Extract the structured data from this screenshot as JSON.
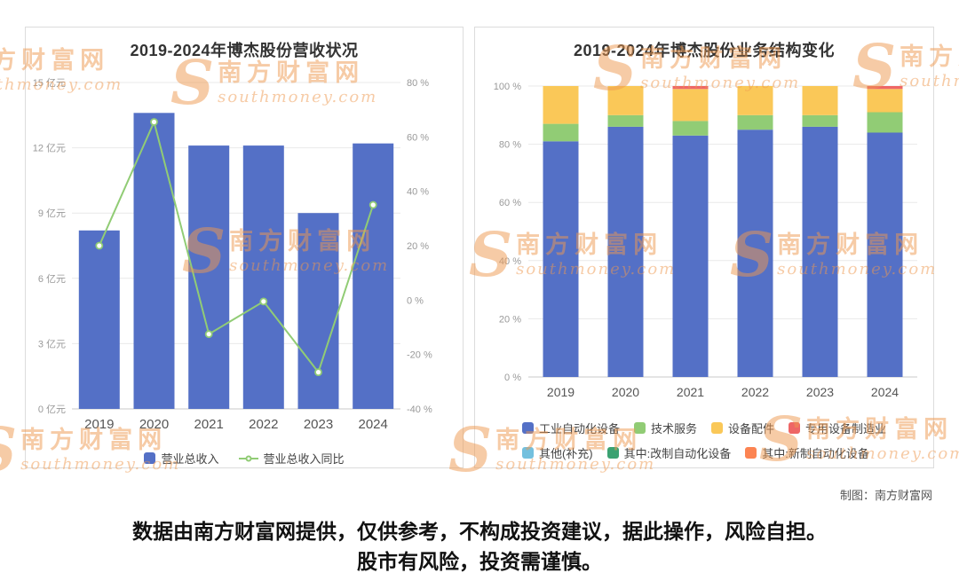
{
  "chart_data": [
    {
      "type": "bar+line",
      "title": "2019-2024年博杰股份营收状况",
      "categories": [
        "2019",
        "2020",
        "2021",
        "2022",
        "2023",
        "2024"
      ],
      "series": [
        {
          "name": "营业总收入",
          "type": "bar",
          "axis": "left",
          "unit": "亿元",
          "color": "#5470C6",
          "values": [
            8.2,
            13.6,
            12.1,
            12.1,
            9.0,
            12.2
          ]
        },
        {
          "name": "营业总收入同比",
          "type": "line",
          "axis": "right",
          "unit": "%",
          "color": "#91CC75",
          "values": [
            20,
            65.5,
            -12.5,
            -0.5,
            -26.5,
            35
          ]
        }
      ],
      "left_axis": {
        "min": 0,
        "max": 15,
        "ticks": [
          0,
          3,
          6,
          9,
          12,
          15
        ],
        "suffix": " 亿元"
      },
      "right_axis": {
        "min": -40,
        "max": 80,
        "ticks": [
          -40,
          -20,
          0,
          20,
          40,
          60,
          80
        ],
        "suffix": " %"
      },
      "grid": true,
      "legend_position": "bottom"
    },
    {
      "type": "stacked-bar",
      "title": "2019-2024年博杰股份业务结构变化",
      "categories": [
        "2019",
        "2020",
        "2021",
        "2022",
        "2023",
        "2024"
      ],
      "y_axis": {
        "min": 0,
        "max": 100,
        "ticks": [
          0,
          20,
          40,
          60,
          80,
          100
        ],
        "suffix": " %"
      },
      "series": [
        {
          "name": "工业自动化设备",
          "color": "#5470C6",
          "values": [
            81,
            86,
            83,
            85,
            86,
            84
          ]
        },
        {
          "name": "技术服务",
          "color": "#91CC75",
          "values": [
            6,
            4,
            5,
            5,
            4,
            7
          ]
        },
        {
          "name": "设备配件",
          "color": "#FAC858",
          "values": [
            13,
            10,
            11,
            10,
            10,
            8
          ]
        },
        {
          "name": "专用设备制造业",
          "color": "#EE6666",
          "values": [
            0,
            0,
            1,
            0,
            0,
            1
          ]
        },
        {
          "name": "其他(补充)",
          "color": "#73C0DE",
          "values": [
            0,
            0,
            0,
            0,
            0,
            0
          ]
        },
        {
          "name": "其中:改制自动化设备",
          "color": "#3BA272",
          "values": [
            0,
            0,
            0,
            0,
            0,
            0
          ]
        },
        {
          "name": "其中:新制自动化设备",
          "color": "#FC8452",
          "values": [
            0,
            0,
            0,
            0,
            0,
            0
          ]
        }
      ],
      "legend_rows": [
        [
          0,
          1,
          2,
          3
        ],
        [
          4,
          5,
          6
        ]
      ],
      "grid": true,
      "legend_position": "bottom"
    }
  ],
  "watermark": {
    "logo_letter": "S",
    "line1": "南方财富网",
    "line2": "southmoney.com"
  },
  "credit": "制图：南方财富网",
  "caption": {
    "line1": "数据由南方财富网提供，仅供参考，不构成投资建议，据此操作，风险自担。",
    "line2": "股市有风险，投资需谨慎。"
  }
}
